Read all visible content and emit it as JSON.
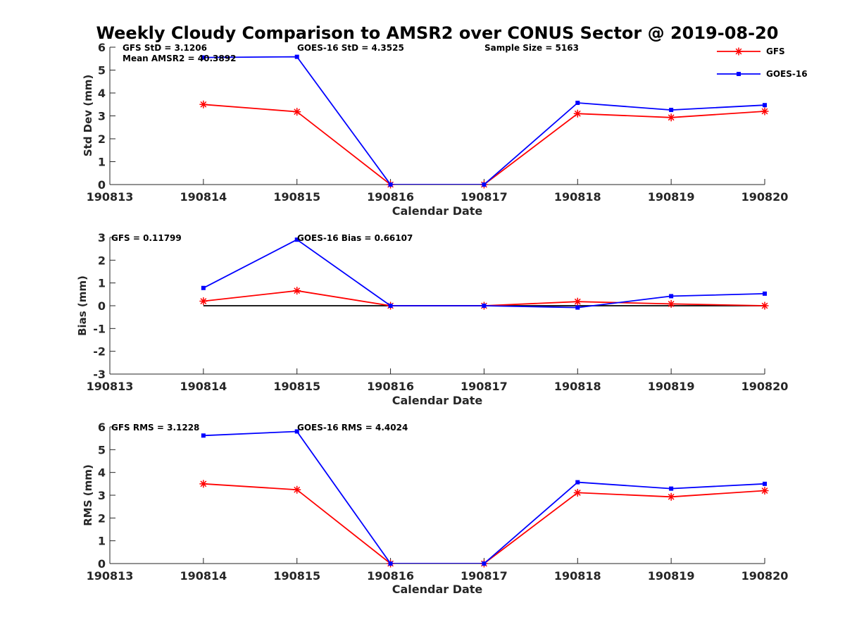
{
  "chart_data": {
    "title": "Weekly Cloudy Comparison to AMSR2 over CONUS Sector @ 2019-08-20",
    "legend": {
      "placement": "top-right",
      "entries": [
        {
          "name": "GFS",
          "color": "#ff0000",
          "marker": "asterisk"
        },
        {
          "name": "GOES-16",
          "color": "#0000ff",
          "marker": "square"
        }
      ]
    },
    "colors": {
      "gfs": "#ff0000",
      "goes": "#0000ff",
      "zero_line": "#000000"
    },
    "x_ticks": [
      "190813",
      "190814",
      "190815",
      "190816",
      "190817",
      "190818",
      "190819",
      "190820"
    ],
    "panels": [
      {
        "id": "std",
        "type": "line",
        "xlabel": "Calendar Date",
        "ylabel": "Std Dev (mm)",
        "xlim": [
          0,
          7
        ],
        "ylim": [
          0,
          6
        ],
        "y_ticks": [
          "0",
          "1",
          "2",
          "3",
          "4",
          "5",
          "6"
        ],
        "zero_line": false,
        "annotations": [
          "GFS StD = 3.1206",
          "GOES-16 StD = 4.3525",
          "Sample Size = 5163",
          "Mean AMSR2 = 40.3892"
        ],
        "series": [
          {
            "name": "GFS",
            "x": [
              1,
              2,
              3,
              4,
              5,
              6,
              7
            ],
            "values": [
              3.5,
              3.18,
              0.0,
              0.0,
              3.1,
              2.93,
              3.2
            ]
          },
          {
            "name": "GOES-16",
            "x": [
              1,
              2,
              3,
              4,
              5,
              6,
              7
            ],
            "values": [
              5.55,
              5.58,
              0.0,
              0.0,
              3.57,
              3.26,
              3.47
            ]
          }
        ]
      },
      {
        "id": "bias",
        "type": "line",
        "xlabel": "Calendar Date",
        "ylabel": "Bias (mm)",
        "xlim": [
          0,
          7
        ],
        "ylim": [
          -3,
          3
        ],
        "y_ticks": [
          "-3",
          "-2",
          "-1",
          "0",
          "1",
          "2",
          "3"
        ],
        "zero_line": true,
        "annotations": [
          "GFS = 0.11799",
          "GOES-16 Bias  = 0.66107"
        ],
        "series": [
          {
            "name": "GFS",
            "x": [
              1,
              2,
              3,
              4,
              5,
              6,
              7
            ],
            "values": [
              0.2,
              0.66,
              0.0,
              0.0,
              0.18,
              0.08,
              0.0
            ]
          },
          {
            "name": "GOES-16",
            "x": [
              1,
              2,
              3,
              4,
              5,
              6,
              7
            ],
            "values": [
              0.78,
              2.9,
              0.0,
              0.0,
              -0.08,
              0.42,
              0.53
            ]
          }
        ]
      },
      {
        "id": "rms",
        "type": "line",
        "xlabel": "Calendar Date",
        "ylabel": "RMS (mm)",
        "xlim": [
          0,
          7
        ],
        "ylim": [
          0,
          6
        ],
        "y_ticks": [
          "0",
          "1",
          "2",
          "3",
          "4",
          "5",
          "6"
        ],
        "zero_line": false,
        "annotations": [
          "GFS RMS = 3.1228",
          "GOES-16 RMS = 4.4024"
        ],
        "series": [
          {
            "name": "GFS",
            "x": [
              1,
              2,
              3,
              4,
              5,
              6,
              7
            ],
            "values": [
              3.5,
              3.24,
              0.0,
              0.0,
              3.11,
              2.93,
              3.2
            ]
          },
          {
            "name": "GOES-16",
            "x": [
              1,
              2,
              3,
              4,
              5,
              6,
              7
            ],
            "values": [
              5.62,
              5.8,
              0.0,
              0.0,
              3.57,
              3.29,
              3.5
            ]
          }
        ]
      }
    ]
  }
}
